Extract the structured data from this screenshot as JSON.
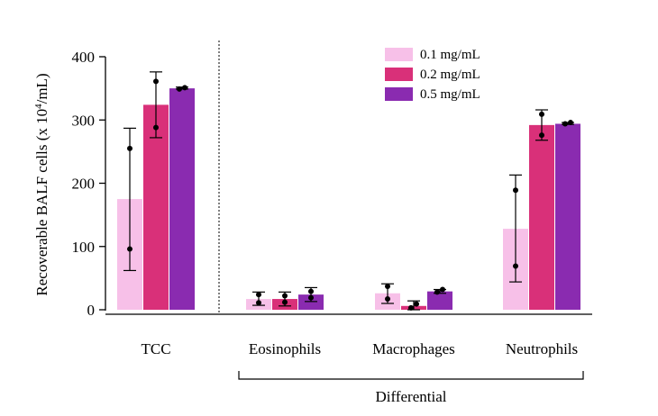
{
  "chart_data": {
    "type": "bar",
    "title": "",
    "xlabel": "",
    "ylabel_main": "Recoverable BALF cells (x 10",
    "ylabel_sup": "4",
    "ylabel_end": "/mL)",
    "ylim": [
      0,
      400
    ],
    "yticks": [
      0,
      100,
      200,
      300,
      400
    ],
    "categories": [
      "TCC",
      "Eosinophils",
      "Macrophages",
      "Neutrophils"
    ],
    "group_label": "Differential",
    "legend_position": "top-right",
    "colors": {
      "0.1 mg/mL": "#f7c0e8",
      "0.2 mg/mL": "#d93079",
      "0.5 mg/mL": "#8a2bb0"
    },
    "series": [
      {
        "name": "0.1 mg/mL",
        "values": [
          175,
          17,
          26,
          128
        ],
        "error_low": [
          62,
          7,
          10,
          44
        ],
        "error_high": [
          287,
          28,
          41,
          213
        ],
        "points": [
          [
            96,
            255
          ],
          [
            11,
            24
          ],
          [
            17,
            37
          ],
          [
            69,
            189
          ]
        ]
      },
      {
        "name": "0.2 mg/mL",
        "values": [
          324,
          17,
          6,
          292
        ],
        "error_low": [
          272,
          6,
          0,
          268
        ],
        "error_high": [
          376,
          28,
          14,
          316
        ],
        "points": [
          [
            288,
            361
          ],
          [
            12,
            22
          ],
          [
            3,
            9
          ],
          [
            276,
            309
          ]
        ]
      },
      {
        "name": "0.5 mg/mL",
        "values": [
          350,
          24,
          29,
          294
        ],
        "error_low": [
          349,
          13,
          26,
          293
        ],
        "error_high": [
          352,
          35,
          32,
          296
        ],
        "points": [
          [
            349,
            351
          ],
          [
            19,
            29
          ],
          [
            28,
            32
          ],
          [
            294,
            296
          ]
        ]
      }
    ]
  }
}
